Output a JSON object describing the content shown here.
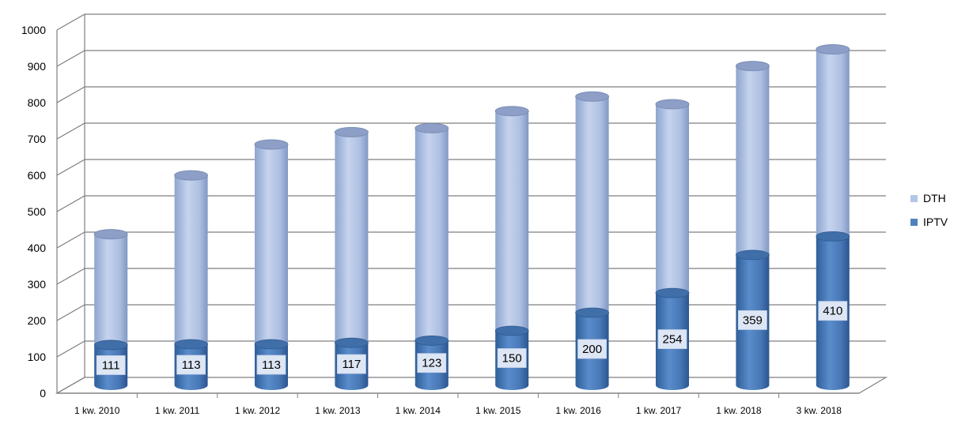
{
  "chart_data": {
    "type": "bar",
    "stacked": true,
    "style": "3d-cylinder",
    "categories": [
      "1 kw. 2010",
      "1 kw. 2011",
      "1 kw. 2012",
      "1 kw. 2013",
      "1 kw. 2014",
      "1 kw. 2015",
      "1 kw. 2016",
      "1 kw. 2017",
      "1 kw. 2018",
      "3 kw. 2018"
    ],
    "series": [
      {
        "name": "IPTV",
        "values": [
          111,
          113,
          113,
          117,
          123,
          150,
          200,
          254,
          359,
          410
        ],
        "color": "#4f81bd"
      },
      {
        "name": "DTH",
        "values": [
          305,
          465,
          550,
          580,
          585,
          605,
          595,
          520,
          520,
          515
        ],
        "color": "#b4c6e7"
      }
    ],
    "data_labels": [
      "111",
      "113",
      "113",
      "117",
      "123",
      "150",
      "200",
      "254",
      "359",
      "410"
    ],
    "y_ticks": [
      "0",
      "100",
      "200",
      "300",
      "400",
      "500",
      "600",
      "700",
      "800",
      "900",
      "1000"
    ],
    "ylim": [
      0,
      1000
    ],
    "grid": true,
    "legend_position": "right",
    "legend": [
      {
        "label": "DTH",
        "color": "#b4c6e7"
      },
      {
        "label": "IPTV",
        "color": "#4f81bd"
      }
    ]
  }
}
